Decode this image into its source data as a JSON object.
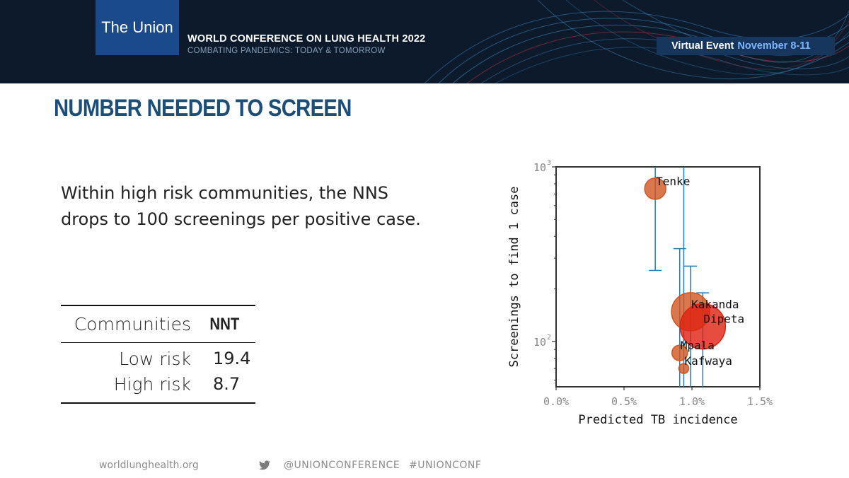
{
  "header": {
    "logo_text": "The Union",
    "conference_title": "WORLD CONFERENCE ON LUNG HEALTH 2022",
    "conference_subtitle": "COMBATING PANDEMICS: TODAY & TOMORROW",
    "event_label": "Virtual Event",
    "event_dates": "November 8-11"
  },
  "slide": {
    "title": "NUMBER NEEDED TO SCREEN",
    "body": "Within high risk communities, the NNS drops to 100 screenings per positive case."
  },
  "table": {
    "headers": [
      "Communities",
      "NNT"
    ],
    "rows": [
      [
        "Low risk",
        "19.4"
      ],
      [
        "High risk",
        "8.7"
      ]
    ]
  },
  "chart_data": {
    "type": "scatter",
    "xlabel": "Predicted TB incidence",
    "ylabel": "Screenings to find 1 case",
    "x_ticks": [
      "0.0%",
      "0.5%",
      "1.0%",
      "1.5%"
    ],
    "y_ticks": [
      "10",
      "10"
    ],
    "y_tick_exponents": [
      "2",
      "3"
    ],
    "xlim": [
      -0.0,
      1.5
    ],
    "ylim": [
      55,
      1000
    ],
    "yscale": "log",
    "grid": false,
    "marker_colors": [
      "#d2551f",
      "#e02010"
    ],
    "errorbar_color": "#2a7ab0",
    "points": [
      {
        "label": "Tenke",
        "x": 0.73,
        "y": 750,
        "size": 15,
        "y_err_low": 255,
        "y_err_high": 1000,
        "color": "#d2551f"
      },
      {
        "label": "Kakanda",
        "x": 0.99,
        "y": 148,
        "size": 27,
        "y_err_low": 55,
        "y_err_high": 270,
        "color": "#d2551f"
      },
      {
        "label": "Dipeta",
        "x": 1.08,
        "y": 122,
        "size": 32,
        "y_err_low": 55,
        "y_err_high": 190,
        "color": "#e02010"
      },
      {
        "label": "Mpala",
        "x": 0.91,
        "y": 86,
        "size": 11,
        "y_err_low": 55,
        "y_err_high": 340,
        "color": "#d2551f"
      },
      {
        "label": "Kafwaya",
        "x": 0.94,
        "y": 70,
        "size": 7,
        "y_err_low": 55,
        "y_err_high": 1000,
        "color": "#d2551f"
      }
    ]
  },
  "footer": {
    "website": "worldlunghealth.org",
    "twitter_handle": "@UNIONCONFERENCE",
    "hashtag": "#UNIONCONF"
  }
}
